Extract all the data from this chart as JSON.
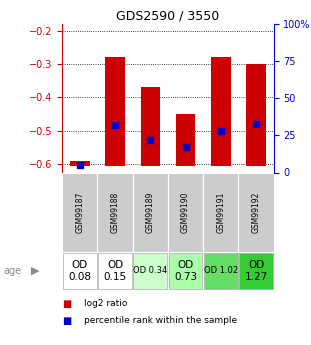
{
  "title": "GDS2590 / 3550",
  "samples": [
    "GSM99187",
    "GSM99188",
    "GSM99189",
    "GSM99190",
    "GSM99191",
    "GSM99192"
  ],
  "log2_ratios": [
    -0.59,
    -0.28,
    -0.37,
    -0.45,
    -0.28,
    -0.3
  ],
  "log2_bottoms": [
    -0.605,
    -0.605,
    -0.605,
    -0.605,
    -0.605,
    -0.605
  ],
  "percentile_ranks": [
    5,
    32,
    22,
    17,
    28,
    33
  ],
  "ylim_left": [
    -0.625,
    -0.18
  ],
  "ylim_right": [
    0,
    100
  ],
  "left_ticks": [
    -0.6,
    -0.5,
    -0.4,
    -0.3,
    -0.2
  ],
  "right_ticks": [
    0,
    25,
    50,
    75,
    100
  ],
  "od_values": [
    "OD\n0.08",
    "OD\n0.15",
    "OD 0.34",
    "OD\n0.73",
    "OD 1.02",
    "OD\n1.27"
  ],
  "od_fontsize": [
    7.5,
    7.5,
    6,
    7.5,
    6,
    7.5
  ],
  "od_colors": [
    "#ffffff",
    "#ffffff",
    "#ccffcc",
    "#aaffaa",
    "#66dd66",
    "#33cc33"
  ],
  "bar_color": "#cc0000",
  "marker_color": "#0000cc",
  "bar_width": 0.55,
  "left_axis_color": "#cc0000",
  "right_axis_color": "#0000cc",
  "xlabel_area_color": "#cccccc",
  "legend_items": [
    "log2 ratio",
    "percentile rank within the sample"
  ],
  "legend_colors": [
    "#cc0000",
    "#0000cc"
  ],
  "age_label": "age",
  "background_color": "#ffffff"
}
